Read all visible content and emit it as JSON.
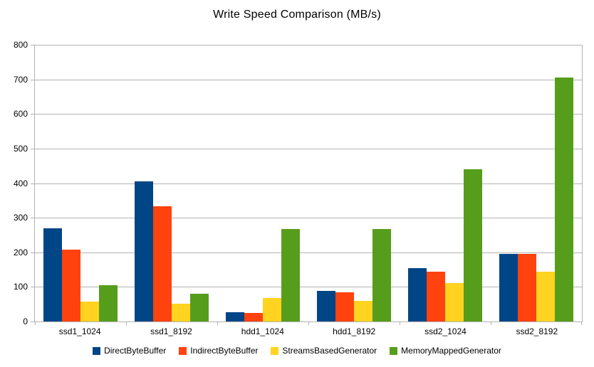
{
  "title": "Write Speed Comparison (MB/s)",
  "colors": {
    "background": "#ffffff",
    "gridline": "#b3b3b3",
    "axis": "#b3b3b3",
    "text": "#000000"
  },
  "chart_data": {
    "type": "bar",
    "title": "Write Speed Comparison (MB/s)",
    "xlabel": "",
    "ylabel": "",
    "categories": [
      "ssd1_1024",
      "ssd1_8192",
      "hdd1_1024",
      "hdd1_8192",
      "ssd2_1024",
      "ssd2_8192"
    ],
    "series": [
      {
        "name": "DirectByteBuffer",
        "color": "#004586",
        "values": [
          270,
          405,
          27,
          89,
          155,
          195
        ]
      },
      {
        "name": "IndirectByteBuffer",
        "color": "#FF420E",
        "values": [
          208,
          334,
          25,
          84,
          143,
          196
        ]
      },
      {
        "name": "StreamsBasedGenerator",
        "color": "#FFD320",
        "values": [
          57,
          52,
          68,
          59,
          112,
          145
        ]
      },
      {
        "name": "MemoryMappedGenerator",
        "color": "#579D1C",
        "values": [
          105,
          80,
          268,
          268,
          440,
          705
        ]
      }
    ],
    "ylim": [
      0,
      800
    ],
    "ytick_step": 100,
    "ytick_labels": [
      "0",
      "100",
      "200",
      "300",
      "400",
      "500",
      "600",
      "700",
      "800"
    ],
    "grid": true,
    "legend_position": "bottom"
  }
}
